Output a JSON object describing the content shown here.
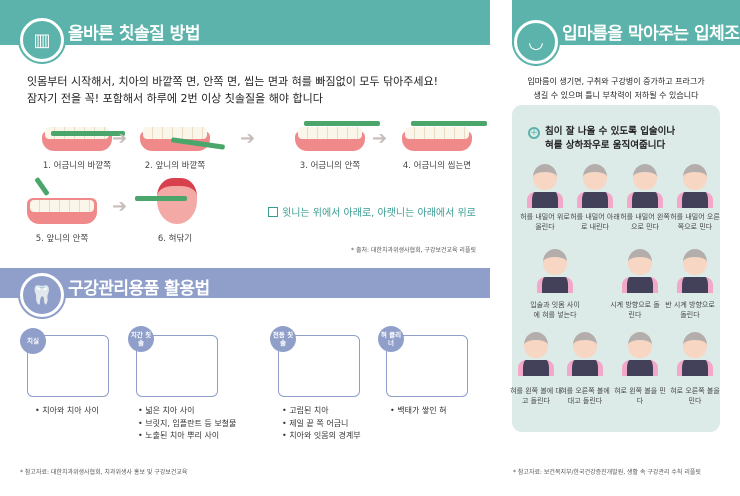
{
  "brushing": {
    "title": "올바른 칫솔질 방법",
    "intro": [
      "잇몸부터 시작해서, 치아의 바깥쪽 면, 안쪽 면, 씹는 면과 혀를 빠짐없이 모두 닦아주세요!",
      "잠자기 전을 꼭! 포함해서 하루에 2번 이상 칫솔질을 해야 합니다"
    ],
    "steps": [
      "1. 어금니의 바깥쪽",
      "2. 앞니의 바깥쪽",
      "3. 어금니의 안쪽",
      "4. 어금니의 씹는면",
      "5. 앞니의 안쪽",
      "6. 혀닦기"
    ],
    "tip": "윗니는 위에서 아래로, 아랫니는 아래에서 위로",
    "source": "* 출처: 대한치과위생사협회, 구강보건교육 리플릿"
  },
  "products": {
    "title": "구강관리용품 활용법",
    "items": [
      {
        "badge": "치실",
        "bullets": [
          "치아와 치아 사이"
        ]
      },
      {
        "badge": "치간 칫솔",
        "bullets": [
          "넓은 치아 사이",
          "브릿지, 임플란트 등 보철물",
          "노출된 치아 뿌리 사이"
        ]
      },
      {
        "badge": "전동 칫솔",
        "bullets": [
          "고립된 치아",
          "제일 끝 쪽 어금니",
          "치아와 잇몸의 경계부"
        ]
      },
      {
        "badge": "혀 클리너",
        "bullets": [
          "백태가 쌓인 혀"
        ]
      }
    ],
    "source": "* 참고자료: 대한치과위생사협회, 치과위생사 홍보 및 구강보건교육"
  },
  "exercise": {
    "title": "입마름을 막아주는 입체조",
    "intro": [
      "입마름이 생기면, 구취와 구강병이 증가하고 프라그가",
      "생길 수 있으며 틀니 부착력이 저하될 수 있습니다"
    ],
    "heading": [
      "침이 잘 나올 수 있도록 입술이나",
      "혀를 상하좌우로 움직여줍니다"
    ],
    "moves": [
      "허를 내밀어 위로 올린다",
      "허를 내밀어 아래로 내린다",
      "허를 내밀어 왼쪽으로 민다",
      "허를 내밀어 오른쪽으로 민다",
      "입술과 잇몸 사이에 혀를 넣는다",
      "시계 방향으로 돌린다",
      "반 시계 방향으로 돌린다",
      "혀를 왼쪽 볼에 대고 돌린다",
      "혀를 오른쪽 볼에 대고 돌린다",
      "혀로 왼쪽 볼을 민다",
      "혀로 오른쪽 볼을 민다"
    ],
    "source": "* 참고자료: 보건복지부/한국건강증진개발원, 생활 속 구강관리 수칙 리플릿"
  },
  "colors": {
    "teal": "#5bb3ab",
    "purple": "#8f9fca",
    "panel": "#ddebe8"
  },
  "icons": [
    "toothbrush-icon",
    "tooth-icon",
    "smile-icon",
    "plus-circle-icon",
    "checkbox-icon"
  ]
}
